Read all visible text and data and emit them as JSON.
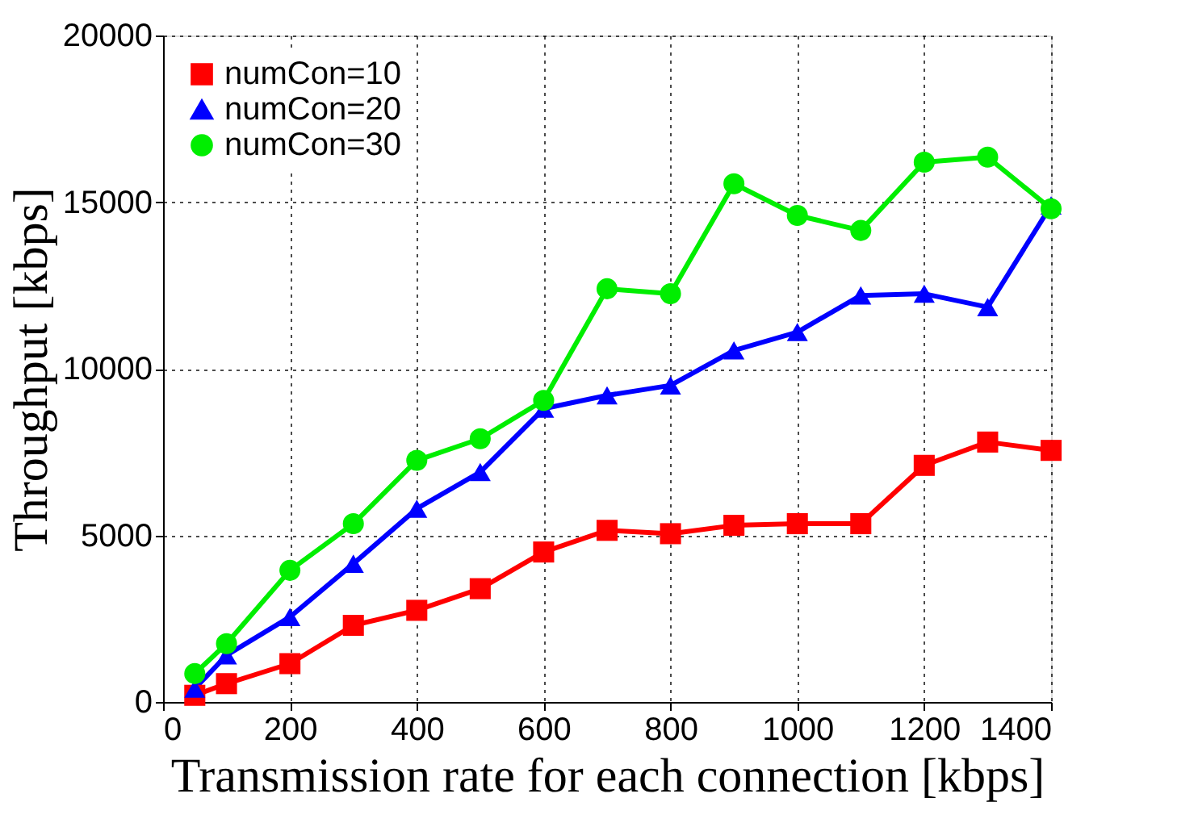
{
  "chart_data": {
    "type": "line",
    "xlabel": "Transmission rate for each connection [kbps]",
    "ylabel": "Throughput [kbps]",
    "xlim": [
      0,
      1400
    ],
    "xticks": [
      0,
      200,
      400,
      600,
      800,
      1000,
      1200,
      1400
    ],
    "ylim": [
      0,
      20000
    ],
    "yticks": [
      0,
      5000,
      10000,
      15000,
      20000
    ],
    "grid": true,
    "legend": "top left",
    "line_style": "solid",
    "x": [
      50,
      100,
      200,
      300,
      400,
      500,
      600,
      700,
      800,
      900,
      1000,
      1100,
      1200,
      1300,
      1400
    ],
    "series": [
      {
        "name": "numCon=10",
        "color": "#ff0000",
        "marker": "square",
        "values": [
          200,
          550,
          1150,
          2300,
          2750,
          3400,
          4500,
          5150,
          5050,
          5300,
          5350,
          5350,
          7100,
          7800,
          7550
        ]
      },
      {
        "name": "numCon=20",
        "color": "#0000ff",
        "marker": "triangle",
        "values": [
          400,
          1400,
          2550,
          4150,
          5800,
          6900,
          8800,
          9200,
          9500,
          10550,
          11100,
          12200,
          12250,
          11850,
          14900
        ]
      },
      {
        "name": "numCon=30",
        "color": "#00ee00",
        "marker": "circle",
        "values": [
          850,
          1750,
          3950,
          5350,
          7250,
          7900,
          9050,
          12400,
          12250,
          15550,
          14600,
          14150,
          16200,
          16350,
          14800
        ]
      }
    ]
  }
}
